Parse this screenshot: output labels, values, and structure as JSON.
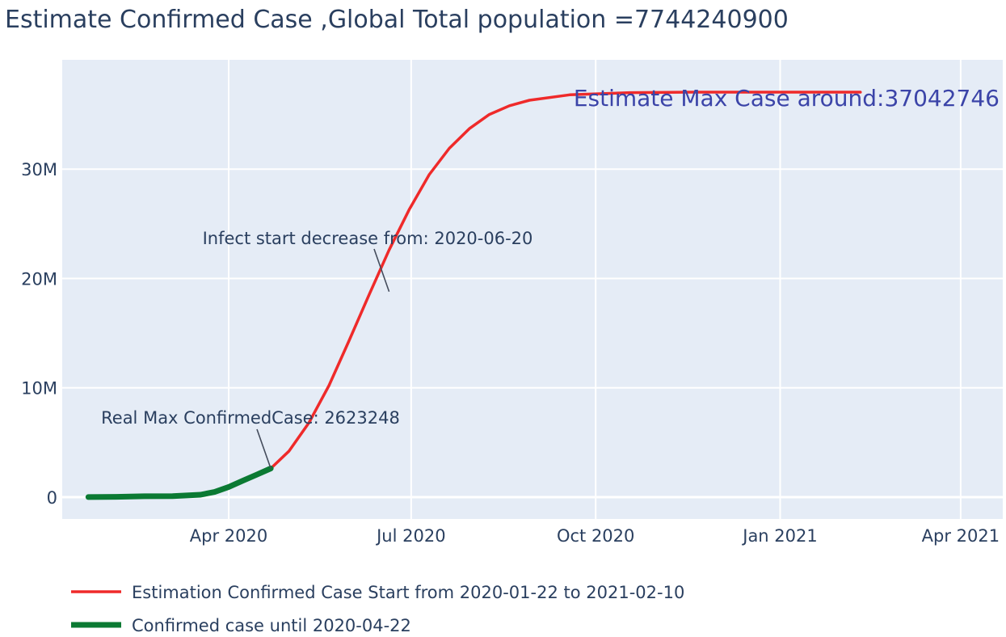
{
  "colors": {
    "plot_background": "#e5ecf6",
    "grid": "#ffffff",
    "text": "#2a3f5f",
    "estimate_line": "#ef2a2a",
    "confirmed_line": "#0b7a33",
    "max_case_annotation": "#3b44a8"
  },
  "chart_data": {
    "type": "line",
    "title": "Estimate Confirmed Case ,Global Total population =7744240900",
    "x_axis": {
      "type": "date",
      "range": [
        "2020-01-09",
        "2021-04-22"
      ],
      "ticks": [
        {
          "date": "2020-04-01",
          "label": "Apr 2020"
        },
        {
          "date": "2020-07-01",
          "label": "Jul 2020"
        },
        {
          "date": "2020-10-01",
          "label": "Oct 2020"
        },
        {
          "date": "2021-01-01",
          "label": "Jan 2021"
        },
        {
          "date": "2021-04-01",
          "label": "Apr 2021"
        }
      ],
      "grid": true
    },
    "y_axis": {
      "range": [
        -2000000,
        40000000
      ],
      "ticks": [
        {
          "value": 0,
          "label": "0"
        },
        {
          "value": 10000000,
          "label": "10M"
        },
        {
          "value": 20000000,
          "label": "20M"
        },
        {
          "value": 30000000,
          "label": "30M"
        }
      ],
      "grid": true
    },
    "series": [
      {
        "name": "Estimation Confirmed Case Start from 2020-01-22 to 2021-02-10",
        "color": "#ef2a2a",
        "points": [
          {
            "x": "2020-04-22",
            "y": 2623248
          },
          {
            "x": "2020-05-01",
            "y": 4200000
          },
          {
            "x": "2020-05-11",
            "y": 6800000
          },
          {
            "x": "2020-05-21",
            "y": 10200000
          },
          {
            "x": "2020-05-31",
            "y": 14300000
          },
          {
            "x": "2020-06-10",
            "y": 18500000
          },
          {
            "x": "2020-06-20",
            "y": 22600000
          },
          {
            "x": "2020-06-30",
            "y": 26300000
          },
          {
            "x": "2020-07-10",
            "y": 29500000
          },
          {
            "x": "2020-07-20",
            "y": 31900000
          },
          {
            "x": "2020-07-30",
            "y": 33700000
          },
          {
            "x": "2020-08-09",
            "y": 35000000
          },
          {
            "x": "2020-08-19",
            "y": 35800000
          },
          {
            "x": "2020-08-29",
            "y": 36300000
          },
          {
            "x": "2020-09-18",
            "y": 36800000
          },
          {
            "x": "2020-10-18",
            "y": 37000000
          },
          {
            "x": "2020-11-17",
            "y": 37040000
          },
          {
            "x": "2020-12-17",
            "y": 37042000
          },
          {
            "x": "2021-01-16",
            "y": 37042700
          },
          {
            "x": "2021-02-10",
            "y": 37042746
          }
        ]
      },
      {
        "name": "Confirmed case until 2020-04-22",
        "color": "#0b7a33",
        "points": [
          {
            "x": "2020-01-22",
            "y": 555
          },
          {
            "x": "2020-02-05",
            "y": 28000
          },
          {
            "x": "2020-02-19",
            "y": 75600
          },
          {
            "x": "2020-03-04",
            "y": 95000
          },
          {
            "x": "2020-03-18",
            "y": 215000
          },
          {
            "x": "2020-03-25",
            "y": 470000
          },
          {
            "x": "2020-04-01",
            "y": 930000
          },
          {
            "x": "2020-04-08",
            "y": 1500000
          },
          {
            "x": "2020-04-15",
            "y": 2050000
          },
          {
            "x": "2020-04-22",
            "y": 2623248
          }
        ]
      }
    ],
    "annotations": [
      {
        "text": "Infect start decrease from: 2020-06-20",
        "x": "2020-06-20",
        "y": 18800000,
        "arrow": true
      },
      {
        "text": "Real Max ConfirmedCase: 2623248",
        "x": "2020-04-22",
        "y": 2623248,
        "arrow": true
      },
      {
        "text": "Estimate Max Case around:37042746",
        "x": "2020-12-17",
        "y": 35500000,
        "arrow": false
      }
    ],
    "legend": {
      "position": "bottom-left",
      "entries": [
        "Estimation Confirmed Case Start from 2020-01-22 to 2021-02-10",
        "Confirmed case until 2020-04-22"
      ]
    }
  }
}
